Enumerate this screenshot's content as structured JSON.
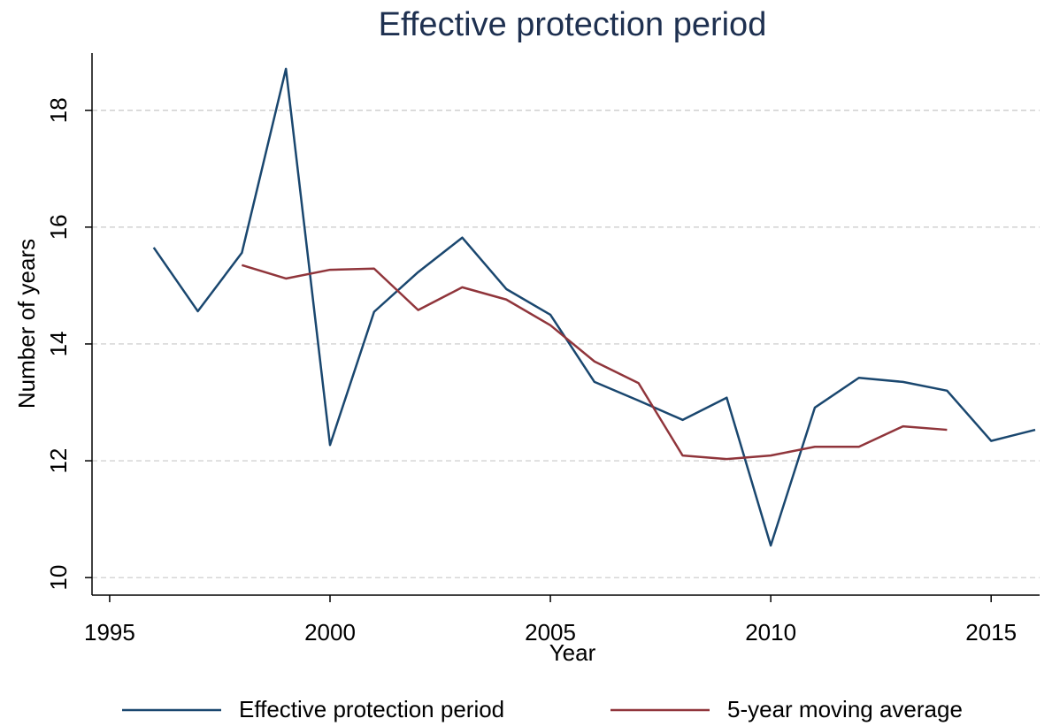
{
  "chart_data": {
    "type": "line",
    "title": "Effective protection period",
    "xlabel": "Year",
    "ylabel": "Number of years",
    "x": [
      1996,
      1997,
      1998,
      1999,
      2000,
      2001,
      2002,
      2003,
      2004,
      2005,
      2006,
      2007,
      2008,
      2009,
      2010,
      2011,
      2012,
      2013,
      2014,
      2015,
      2016
    ],
    "series": [
      {
        "name": "Effective protection period",
        "color": "#1a476f",
        "values": [
          15.65,
          14.56,
          15.56,
          18.71,
          12.27,
          14.55,
          15.23,
          15.82,
          14.94,
          14.5,
          13.35,
          13.03,
          12.7,
          13.08,
          10.55,
          12.91,
          13.42,
          13.35,
          13.2,
          12.34,
          12.53
        ]
      },
      {
        "name": "5-year moving average",
        "color": "#90353b",
        "values": [
          null,
          null,
          15.35,
          15.12,
          15.27,
          15.29,
          14.58,
          14.97,
          14.76,
          14.32,
          13.7,
          13.33,
          12.09,
          12.03,
          12.09,
          12.24,
          12.24,
          12.59,
          12.53,
          null,
          null
        ]
      }
    ],
    "xlim": [
      1994.6,
      2016.1
    ],
    "xticks": [
      1995,
      2000,
      2005,
      2010,
      2015
    ],
    "ylim": [
      9.7,
      18.98
    ],
    "yticks": [
      10,
      12,
      14,
      16,
      18
    ],
    "grid": true,
    "legend": "bottom"
  }
}
